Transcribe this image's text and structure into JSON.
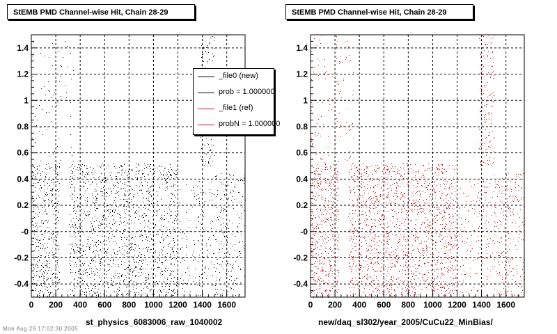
{
  "chart_data": [
    {
      "type": "scatter",
      "title": "StEMB PMD Channel-wise Hit, Chain 28-29",
      "xlabel": "st_physics_6083006_raw_1040002",
      "ylabel": "",
      "xlim": [
        0,
        1750
      ],
      "ylim": [
        -0.5,
        1.5
      ],
      "xticks": [
        0,
        200,
        400,
        600,
        800,
        1000,
        1200,
        1400,
        1600
      ],
      "yticks": [
        -0.4,
        -0.2,
        0,
        0.2,
        0.4,
        0.6,
        0.8,
        1,
        1.2,
        1.4
      ],
      "ytick_labels": [
        "-0.4",
        "-0.2",
        "-0",
        "0.2",
        "0.4",
        "0.6",
        "0.8",
        "1",
        "1.2",
        "1.4"
      ],
      "grid": true,
      "marker_color": "#000000",
      "legend_position": "top-right",
      "legend": [
        {
          "label": "_file0 (new)",
          "color": "#000000"
        },
        {
          "label": "prob = 1.000000",
          "color": "#000000"
        },
        {
          "label": "_file1 (ref)",
          "color": "#ff0000"
        },
        {
          "label": "probN = 1.000000",
          "color": "#ff0000"
        }
      ],
      "series": [
        {
          "x_range": [
            0,
            230
          ],
          "y_range": [
            -0.5,
            0.52
          ],
          "density": 0.8
        },
        {
          "x_range": [
            0,
            350
          ],
          "y_range": [
            0.52,
            1.5
          ],
          "density": 0.1
        },
        {
          "x_range": [
            310,
            1200
          ],
          "y_range": [
            -0.5,
            0.52
          ],
          "density": 0.7
        },
        {
          "x_range": [
            1210,
            1380
          ],
          "y_range": [
            -0.5,
            0.4
          ],
          "density": 0.25
        },
        {
          "x_range": [
            1380,
            1500
          ],
          "y_range": [
            -0.5,
            0.4
          ],
          "density": 0.25
        },
        {
          "x_range": [
            1380,
            1500
          ],
          "y_range": [
            0.5,
            1.5
          ],
          "density": 0.55
        },
        {
          "x_range": [
            1500,
            1750
          ],
          "y_range": [
            -0.5,
            0.45
          ],
          "density": 0.4
        }
      ]
    },
    {
      "type": "scatter",
      "title": "StEMB PMD Channel-wise Hit, Chain 28-29",
      "xlabel": "new/daq_sl302/year_2005/CuCu22_MinBias/",
      "ylabel": "",
      "xlim": [
        0,
        1750
      ],
      "ylim": [
        -0.5,
        1.5
      ],
      "xticks": [
        0,
        200,
        400,
        600,
        800,
        1000,
        1200,
        1400,
        1600
      ],
      "yticks": [
        -0.4,
        -0.2,
        0,
        0.2,
        0.4,
        0.6,
        0.8,
        1,
        1.2,
        1.4
      ],
      "ytick_labels": [
        "-0.4",
        "-0.2",
        "-0",
        "0.2",
        "0.4",
        "0.6",
        "0.8",
        "1",
        "1.2",
        "1.4"
      ],
      "grid": true,
      "marker_color": "#dd0000",
      "series": [
        {
          "x_range": [
            0,
            230
          ],
          "y_range": [
            -0.5,
            0.52
          ],
          "density": 0.9
        },
        {
          "x_range": [
            0,
            350
          ],
          "y_range": [
            0.52,
            1.5
          ],
          "density": 0.15
        },
        {
          "x_range": [
            310,
            1200
          ],
          "y_range": [
            -0.5,
            0.52
          ],
          "density": 0.8
        },
        {
          "x_range": [
            1210,
            1380
          ],
          "y_range": [
            -0.5,
            0.4
          ],
          "density": 0.3
        },
        {
          "x_range": [
            1380,
            1500
          ],
          "y_range": [
            -0.5,
            0.4
          ],
          "density": 0.3
        },
        {
          "x_range": [
            1380,
            1500
          ],
          "y_range": [
            0.5,
            1.5
          ],
          "density": 0.6
        },
        {
          "x_range": [
            1500,
            1750
          ],
          "y_range": [
            -0.5,
            0.45
          ],
          "density": 0.45
        }
      ]
    }
  ],
  "footer_text": "Mon Aug 29 17:02:30 2005"
}
